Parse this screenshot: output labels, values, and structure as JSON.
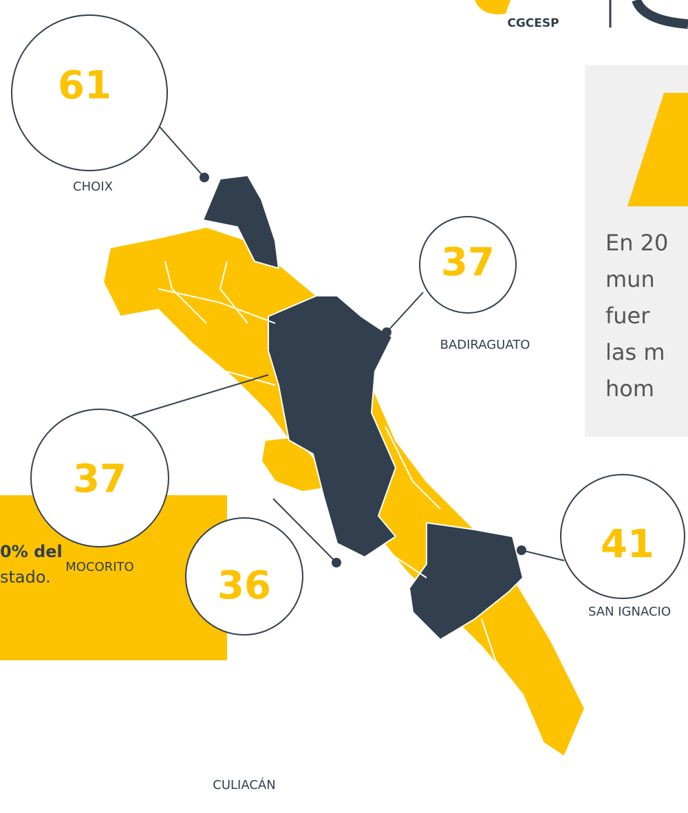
{
  "logo": {
    "text": "CGCESP"
  },
  "callouts": [
    {
      "value": 61,
      "name": "CHOIX"
    },
    {
      "value": 37,
      "name": "BADIRAGUATO"
    },
    {
      "value": 37,
      "name": "MOCORITO"
    },
    {
      "value": 41,
      "name": "SAN IGNACIO"
    },
    {
      "value": 36,
      "name": "CULIACÁN"
    }
  ],
  "note": {
    "lines": [
      "En 20",
      "mun",
      "fuer",
      "las m",
      "hom"
    ]
  },
  "banner": {
    "lines": [
      "0% del",
      "stado."
    ]
  }
}
